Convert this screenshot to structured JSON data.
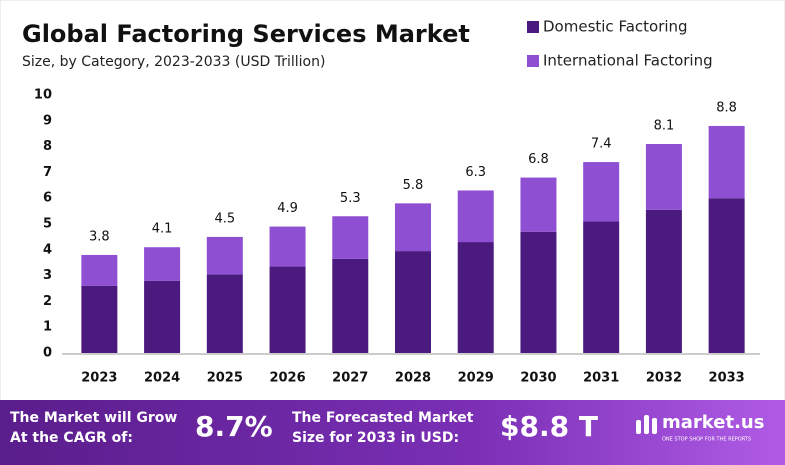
{
  "chart_data": {
    "type": "stacked_bar",
    "title": "Global Factoring Services Market",
    "subtitle": "Size, by Category, 2023-2033 (USD Trillion)",
    "categories": [
      "2023",
      "2024",
      "2025",
      "2026",
      "2027",
      "2028",
      "2029",
      "2030",
      "2031",
      "2032",
      "2033"
    ],
    "series": [
      {
        "name": "Domestic Factoring",
        "color": "#4a1a7e",
        "values": [
          2.6,
          2.8,
          3.05,
          3.35,
          3.65,
          3.95,
          4.3,
          4.7,
          5.1,
          5.55,
          6.0
        ]
      },
      {
        "name": "International Factoring",
        "color": "#8e4fd3",
        "values": [
          1.2,
          1.3,
          1.45,
          1.55,
          1.65,
          1.85,
          2.0,
          2.1,
          2.3,
          2.55,
          2.8
        ]
      }
    ],
    "totals": [
      3.8,
      4.1,
      4.5,
      4.9,
      5.3,
      5.8,
      6.3,
      6.8,
      7.4,
      8.1,
      8.8
    ],
    "ylim": [
      0,
      10
    ],
    "yticks": [
      0,
      1,
      2,
      3,
      4,
      5,
      6,
      7,
      8,
      9,
      10
    ],
    "grid": false
  },
  "footer": {
    "cagr_label": [
      "The Market will Grow",
      "At the CAGR of:"
    ],
    "cagr_value": "8.7%",
    "forecast_label": [
      "The Forecasted Market",
      "Size for 2033 in USD:"
    ],
    "forecast_value": "$8.8 T",
    "brand": "market.us",
    "tagline": "ONE STOP SHOP FOR THE REPORTS"
  }
}
